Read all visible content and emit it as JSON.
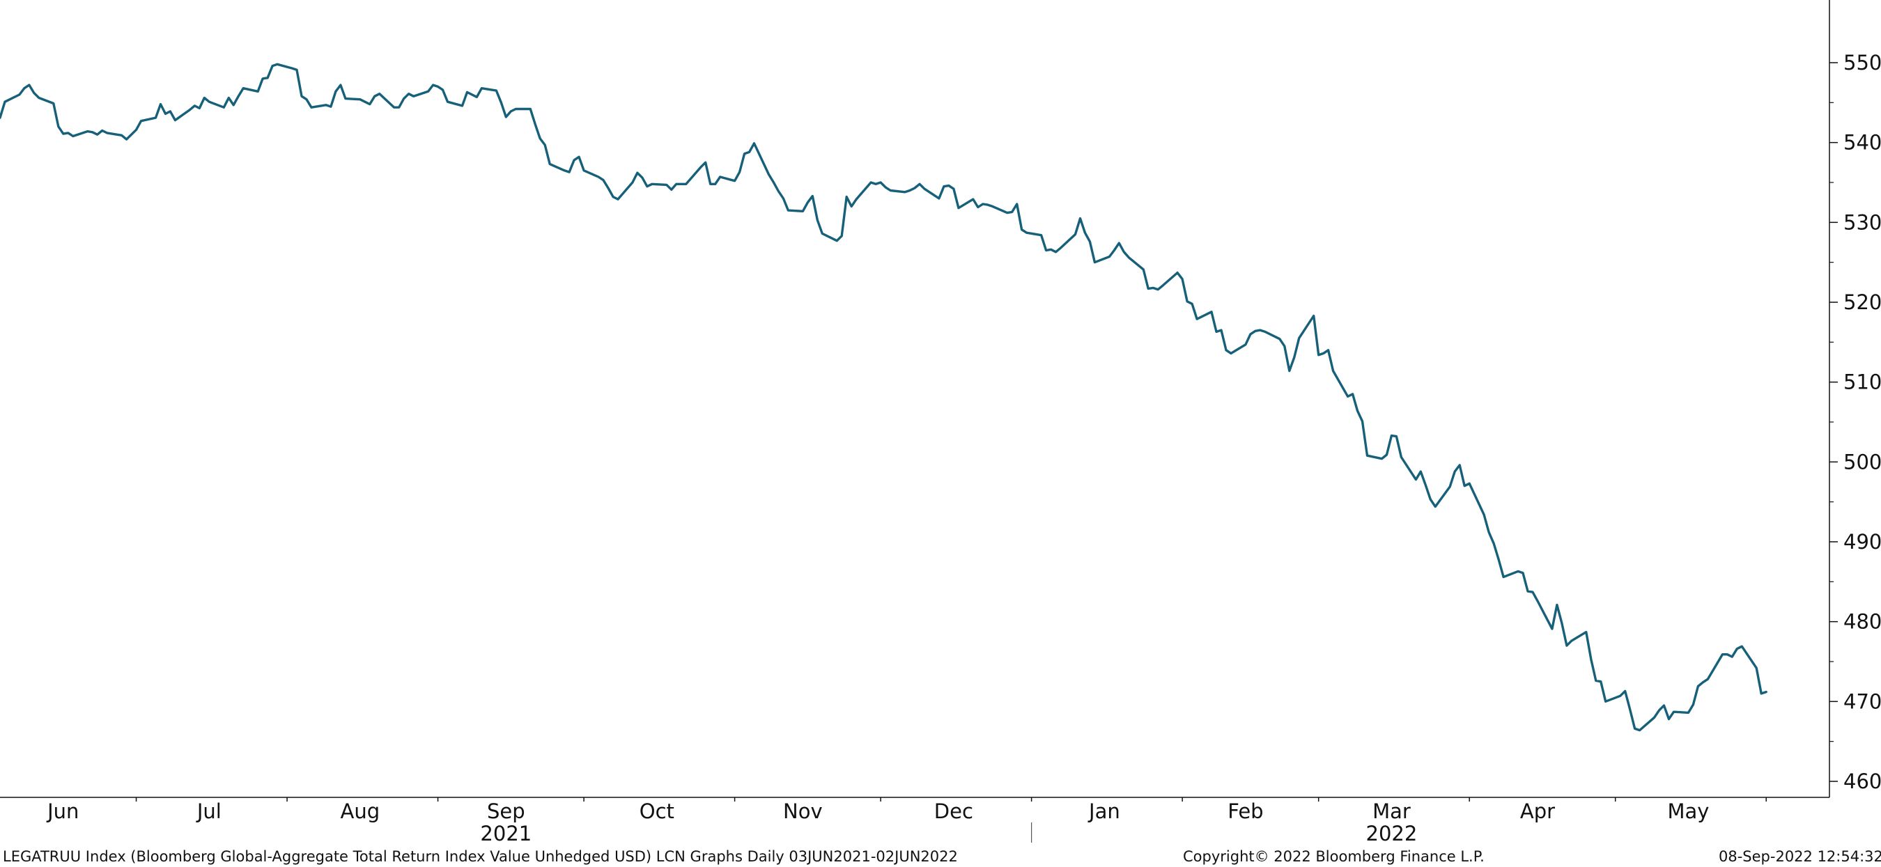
{
  "chart_data": {
    "type": "line",
    "series": [
      {
        "color": "#17607a",
        "points": [
          [
            "2021-06-03",
            543.1
          ],
          [
            "2021-06-04",
            545.1
          ],
          [
            "2021-06-07",
            546.0
          ],
          [
            "2021-06-08",
            546.8
          ],
          [
            "2021-06-09",
            547.2
          ],
          [
            "2021-06-10",
            546.2
          ],
          [
            "2021-06-11",
            545.6
          ],
          [
            "2021-06-14",
            544.9
          ],
          [
            "2021-06-15",
            542.0
          ],
          [
            "2021-06-16",
            541.1
          ],
          [
            "2021-06-17",
            541.2
          ],
          [
            "2021-06-18",
            540.8
          ],
          [
            "2021-06-21",
            541.4
          ],
          [
            "2021-06-22",
            541.3
          ],
          [
            "2021-06-23",
            541.0
          ],
          [
            "2021-06-24",
            541.5
          ],
          [
            "2021-06-25",
            541.2
          ],
          [
            "2021-06-28",
            540.9
          ],
          [
            "2021-06-29",
            540.4
          ],
          [
            "2021-06-30",
            541.0
          ],
          [
            "2021-07-01",
            541.6
          ],
          [
            "2021-07-02",
            542.7
          ],
          [
            "2021-07-05",
            543.1
          ],
          [
            "2021-07-06",
            544.8
          ],
          [
            "2021-07-07",
            543.6
          ],
          [
            "2021-07-08",
            543.9
          ],
          [
            "2021-07-09",
            542.8
          ],
          [
            "2021-07-12",
            544.1
          ],
          [
            "2021-07-13",
            544.6
          ],
          [
            "2021-07-14",
            544.3
          ],
          [
            "2021-07-15",
            545.6
          ],
          [
            "2021-07-16",
            545.1
          ],
          [
            "2021-07-19",
            544.4
          ],
          [
            "2021-07-20",
            545.6
          ],
          [
            "2021-07-21",
            544.7
          ],
          [
            "2021-07-22",
            545.8
          ],
          [
            "2021-07-23",
            546.8
          ],
          [
            "2021-07-26",
            546.4
          ],
          [
            "2021-07-27",
            548.0
          ],
          [
            "2021-07-28",
            548.1
          ],
          [
            "2021-07-29",
            549.6
          ],
          [
            "2021-07-30",
            549.8
          ],
          [
            "2021-08-02",
            549.3
          ],
          [
            "2021-08-03",
            549.1
          ],
          [
            "2021-08-04",
            545.8
          ],
          [
            "2021-08-05",
            545.4
          ],
          [
            "2021-08-06",
            544.4
          ],
          [
            "2021-08-09",
            544.7
          ],
          [
            "2021-08-10",
            544.5
          ],
          [
            "2021-08-11",
            546.4
          ],
          [
            "2021-08-12",
            547.2
          ],
          [
            "2021-08-13",
            545.5
          ],
          [
            "2021-08-16",
            545.4
          ],
          [
            "2021-08-17",
            545.1
          ],
          [
            "2021-08-18",
            544.8
          ],
          [
            "2021-08-19",
            545.8
          ],
          [
            "2021-08-20",
            546.1
          ],
          [
            "2021-08-23",
            544.4
          ],
          [
            "2021-08-24",
            544.4
          ],
          [
            "2021-08-25",
            545.5
          ],
          [
            "2021-08-26",
            546.1
          ],
          [
            "2021-08-27",
            545.8
          ],
          [
            "2021-08-30",
            546.4
          ],
          [
            "2021-08-31",
            547.2
          ],
          [
            "2021-09-01",
            547.0
          ],
          [
            "2021-09-02",
            546.6
          ],
          [
            "2021-09-03",
            545.1
          ],
          [
            "2021-09-06",
            544.6
          ],
          [
            "2021-09-07",
            546.3
          ],
          [
            "2021-09-08",
            546.0
          ],
          [
            "2021-09-09",
            545.7
          ],
          [
            "2021-09-10",
            546.8
          ],
          [
            "2021-09-13",
            546.5
          ],
          [
            "2021-09-14",
            545.0
          ],
          [
            "2021-09-15",
            543.2
          ],
          [
            "2021-09-16",
            543.9
          ],
          [
            "2021-09-17",
            544.2
          ],
          [
            "2021-09-20",
            544.2
          ],
          [
            "2021-09-21",
            542.3
          ],
          [
            "2021-09-22",
            540.5
          ],
          [
            "2021-09-23",
            539.7
          ],
          [
            "2021-09-24",
            537.3
          ],
          [
            "2021-09-27",
            536.5
          ],
          [
            "2021-09-28",
            536.3
          ],
          [
            "2021-09-29",
            537.8
          ],
          [
            "2021-09-30",
            538.2
          ],
          [
            "2021-10-01",
            536.5
          ],
          [
            "2021-10-04",
            535.7
          ],
          [
            "2021-10-05",
            535.3
          ],
          [
            "2021-10-06",
            534.3
          ],
          [
            "2021-10-07",
            533.2
          ],
          [
            "2021-10-08",
            532.9
          ],
          [
            "2021-10-11",
            535.0
          ],
          [
            "2021-10-12",
            536.2
          ],
          [
            "2021-10-13",
            535.6
          ],
          [
            "2021-10-14",
            534.5
          ],
          [
            "2021-10-15",
            534.8
          ],
          [
            "2021-10-18",
            534.7
          ],
          [
            "2021-10-19",
            534.1
          ],
          [
            "2021-10-20",
            534.8
          ],
          [
            "2021-10-21",
            534.8
          ],
          [
            "2021-10-22",
            534.8
          ],
          [
            "2021-10-25",
            536.9
          ],
          [
            "2021-10-26",
            537.5
          ],
          [
            "2021-10-27",
            534.8
          ],
          [
            "2021-10-28",
            534.8
          ],
          [
            "2021-10-29",
            535.7
          ],
          [
            "2021-11-01",
            535.2
          ],
          [
            "2021-11-02",
            536.3
          ],
          [
            "2021-11-03",
            538.6
          ],
          [
            "2021-11-04",
            538.8
          ],
          [
            "2021-11-05",
            539.9
          ],
          [
            "2021-11-08",
            536.0
          ],
          [
            "2021-11-09",
            535.0
          ],
          [
            "2021-11-10",
            533.9
          ],
          [
            "2021-11-11",
            533.0
          ],
          [
            "2021-11-12",
            531.5
          ],
          [
            "2021-11-15",
            531.4
          ],
          [
            "2021-11-16",
            532.5
          ],
          [
            "2021-11-17",
            533.3
          ],
          [
            "2021-11-18",
            530.3
          ],
          [
            "2021-11-19",
            528.6
          ],
          [
            "2021-11-22",
            527.7
          ],
          [
            "2021-11-23",
            528.3
          ],
          [
            "2021-11-24",
            533.2
          ],
          [
            "2021-11-25",
            532.0
          ],
          [
            "2021-11-26",
            532.9
          ],
          [
            "2021-11-29",
            535.0
          ],
          [
            "2021-11-30",
            534.8
          ],
          [
            "2021-12-01",
            535.0
          ],
          [
            "2021-12-02",
            534.4
          ],
          [
            "2021-12-03",
            534.0
          ],
          [
            "2021-12-06",
            533.8
          ],
          [
            "2021-12-07",
            534.0
          ],
          [
            "2021-12-08",
            534.3
          ],
          [
            "2021-12-09",
            534.8
          ],
          [
            "2021-12-10",
            534.2
          ],
          [
            "2021-12-13",
            533.0
          ],
          [
            "2021-12-14",
            534.5
          ],
          [
            "2021-12-15",
            534.6
          ],
          [
            "2021-12-16",
            534.2
          ],
          [
            "2021-12-17",
            531.8
          ],
          [
            "2021-12-20",
            532.9
          ],
          [
            "2021-12-21",
            531.9
          ],
          [
            "2021-12-22",
            532.3
          ],
          [
            "2021-12-23",
            532.2
          ],
          [
            "2021-12-24",
            532.0
          ],
          [
            "2021-12-27",
            531.2
          ],
          [
            "2021-12-28",
            531.3
          ],
          [
            "2021-12-29",
            532.3
          ],
          [
            "2021-12-30",
            529.1
          ],
          [
            "2021-12-31",
            528.7
          ],
          [
            "2022-01-03",
            528.4
          ],
          [
            "2022-01-04",
            526.5
          ],
          [
            "2022-01-05",
            526.6
          ],
          [
            "2022-01-06",
            526.3
          ],
          [
            "2022-01-07",
            526.8
          ],
          [
            "2022-01-10",
            528.5
          ],
          [
            "2022-01-11",
            530.5
          ],
          [
            "2022-01-12",
            528.7
          ],
          [
            "2022-01-13",
            527.6
          ],
          [
            "2022-01-14",
            525.0
          ],
          [
            "2022-01-17",
            525.7
          ],
          [
            "2022-01-18",
            526.5
          ],
          [
            "2022-01-19",
            527.4
          ],
          [
            "2022-01-20",
            526.3
          ],
          [
            "2022-01-21",
            525.6
          ],
          [
            "2022-01-24",
            524.1
          ],
          [
            "2022-01-25",
            521.7
          ],
          [
            "2022-01-26",
            521.8
          ],
          [
            "2022-01-27",
            521.6
          ],
          [
            "2022-01-28",
            522.1
          ],
          [
            "2022-01-31",
            523.7
          ],
          [
            "2022-02-01",
            522.9
          ],
          [
            "2022-02-02",
            520.1
          ],
          [
            "2022-02-03",
            519.8
          ],
          [
            "2022-02-04",
            517.9
          ],
          [
            "2022-02-07",
            518.8
          ],
          [
            "2022-02-08",
            516.3
          ],
          [
            "2022-02-09",
            516.5
          ],
          [
            "2022-02-10",
            514.0
          ],
          [
            "2022-02-11",
            513.6
          ],
          [
            "2022-02-14",
            514.7
          ],
          [
            "2022-02-15",
            516.0
          ],
          [
            "2022-02-16",
            516.4
          ],
          [
            "2022-02-17",
            516.5
          ],
          [
            "2022-02-18",
            516.3
          ],
          [
            "2022-02-21",
            515.4
          ],
          [
            "2022-02-22",
            514.5
          ],
          [
            "2022-02-23",
            511.4
          ],
          [
            "2022-02-24",
            513.1
          ],
          [
            "2022-02-25",
            515.5
          ],
          [
            "2022-02-28",
            518.3
          ],
          [
            "2022-03-01",
            513.4
          ],
          [
            "2022-03-02",
            513.6
          ],
          [
            "2022-03-03",
            514.0
          ],
          [
            "2022-03-04",
            511.4
          ],
          [
            "2022-03-07",
            508.2
          ],
          [
            "2022-03-08",
            508.5
          ],
          [
            "2022-03-09",
            506.4
          ],
          [
            "2022-03-10",
            505.1
          ],
          [
            "2022-03-11",
            500.8
          ],
          [
            "2022-03-14",
            500.4
          ],
          [
            "2022-03-15",
            500.9
          ],
          [
            "2022-03-16",
            503.3
          ],
          [
            "2022-03-17",
            503.2
          ],
          [
            "2022-03-18",
            500.6
          ],
          [
            "2022-03-21",
            497.8
          ],
          [
            "2022-03-22",
            498.8
          ],
          [
            "2022-03-23",
            497.1
          ],
          [
            "2022-03-24",
            495.3
          ],
          [
            "2022-03-25",
            494.4
          ],
          [
            "2022-03-28",
            496.9
          ],
          [
            "2022-03-29",
            498.8
          ],
          [
            "2022-03-30",
            499.6
          ],
          [
            "2022-03-31",
            497.0
          ],
          [
            "2022-04-01",
            497.3
          ],
          [
            "2022-04-04",
            493.4
          ],
          [
            "2022-04-05",
            491.2
          ],
          [
            "2022-04-06",
            489.8
          ],
          [
            "2022-04-07",
            487.8
          ],
          [
            "2022-04-08",
            485.6
          ],
          [
            "2022-04-11",
            486.3
          ],
          [
            "2022-04-12",
            486.1
          ],
          [
            "2022-04-13",
            483.8
          ],
          [
            "2022-04-14",
            483.7
          ],
          [
            "2022-04-15",
            482.6
          ],
          [
            "2022-04-18",
            479.1
          ],
          [
            "2022-04-19",
            482.1
          ],
          [
            "2022-04-20",
            479.8
          ],
          [
            "2022-04-21",
            477.0
          ],
          [
            "2022-04-22",
            477.6
          ],
          [
            "2022-04-25",
            478.7
          ],
          [
            "2022-04-26",
            475.3
          ],
          [
            "2022-04-27",
            472.6
          ],
          [
            "2022-04-28",
            472.5
          ],
          [
            "2022-04-29",
            470.0
          ],
          [
            "2022-05-02",
            470.7
          ],
          [
            "2022-05-03",
            471.3
          ],
          [
            "2022-05-04",
            469.0
          ],
          [
            "2022-05-05",
            466.6
          ],
          [
            "2022-05-06",
            466.4
          ],
          [
            "2022-05-09",
            468.0
          ],
          [
            "2022-05-10",
            468.9
          ],
          [
            "2022-05-11",
            469.5
          ],
          [
            "2022-05-12",
            467.8
          ],
          [
            "2022-05-13",
            468.7
          ],
          [
            "2022-05-16",
            468.6
          ],
          [
            "2022-05-17",
            469.6
          ],
          [
            "2022-05-18",
            471.9
          ],
          [
            "2022-05-19",
            472.4
          ],
          [
            "2022-05-20",
            472.8
          ],
          [
            "2022-05-23",
            475.9
          ],
          [
            "2022-05-24",
            475.9
          ],
          [
            "2022-05-25",
            475.6
          ],
          [
            "2022-05-26",
            476.6
          ],
          [
            "2022-05-27",
            476.9
          ],
          [
            "2022-05-30",
            474.2
          ],
          [
            "2022-05-31",
            471.0
          ],
          [
            "2022-06-01",
            471.2
          ]
        ]
      }
    ],
    "ylim": [
      460,
      555
    ],
    "y_ticks": [
      460,
      470,
      480,
      490,
      500,
      510,
      520,
      530,
      540,
      550
    ],
    "y_axis_side": "right",
    "grid": false,
    "x_month_labels": [
      {
        "label": "Jun",
        "date": "2021-06-16"
      },
      {
        "label": "Jul",
        "date": "2021-07-16"
      },
      {
        "label": "Aug",
        "date": "2021-08-16"
      },
      {
        "label": "Sep",
        "date": "2021-09-15"
      },
      {
        "label": "Oct",
        "date": "2021-10-16"
      },
      {
        "label": "Nov",
        "date": "2021-11-15"
      },
      {
        "label": "Dec",
        "date": "2021-12-16"
      },
      {
        "label": "Jan",
        "date": "2022-01-16"
      },
      {
        "label": "Feb",
        "date": "2022-02-14"
      },
      {
        "label": "Mar",
        "date": "2022-03-16"
      },
      {
        "label": "Apr",
        "date": "2022-04-15"
      },
      {
        "label": "May",
        "date": "2022-05-16"
      }
    ],
    "x_month_ticks": [
      "2021-06-01",
      "2021-07-01",
      "2021-08-01",
      "2021-09-01",
      "2021-10-01",
      "2021-11-01",
      "2021-12-01",
      "2022-01-01",
      "2022-02-01",
      "2022-03-01",
      "2022-04-01",
      "2022-05-01",
      "2022-06-01"
    ],
    "x_year_labels": [
      {
        "label": "2021",
        "date": "2021-09-15"
      },
      {
        "label": "2022",
        "date": "2022-03-16"
      }
    ],
    "year_separator": "2022-01-01",
    "x_range": [
      "2021-06-03",
      "2022-06-14"
    ]
  },
  "footer": {
    "description": "LEGATRUU Index (Bloomberg Global-Aggregate Total Return Index Value Unhedged USD) LCN Graphs  Daily 03JUN2021-02JUN2022",
    "copyright": "Copyright© 2022 Bloomberg Finance L.P.",
    "timestamp": "08-Sep-2022 12:54:32"
  }
}
